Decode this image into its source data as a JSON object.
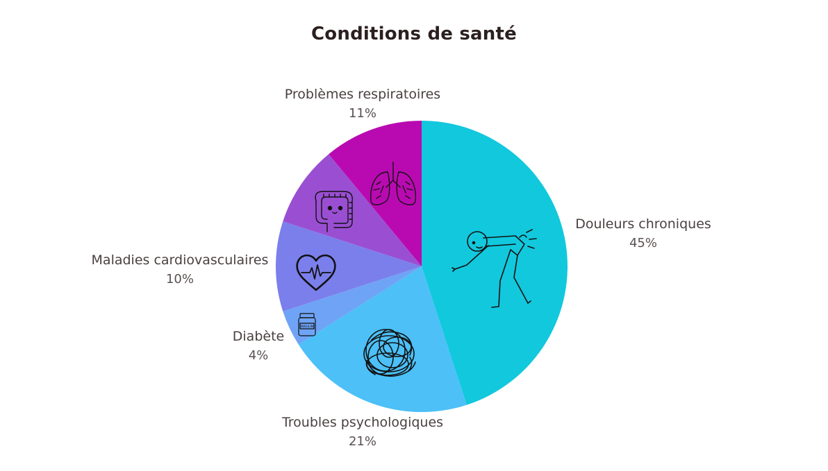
{
  "chart_data": {
    "type": "pie",
    "title": "Conditions de santé",
    "slices": [
      {
        "label": "Douleurs chroniques",
        "value": 45,
        "value_label": "45%",
        "color": "#12c8dd",
        "icon": "person-back-pain-icon"
      },
      {
        "label": "Troubles psychologiques",
        "value": 21,
        "value_label": "21%",
        "color": "#4cc0f7",
        "icon": "tangled-scribble-icon"
      },
      {
        "label": "Diabète",
        "value": 4,
        "value_label": "4%",
        "color": "#6fa3f5",
        "icon": "insulin-bottle-icon"
      },
      {
        "label": "Maladies cardiovasculaires",
        "value": 10,
        "value_label": "10%",
        "color": "#7b7feb",
        "icon": "heart-heartbeat-icon"
      },
      {
        "label": "",
        "value": 9,
        "value_label": "",
        "color": "#9a4fd2",
        "icon": "intestine-icon"
      },
      {
        "label": "Problèmes respiratoires",
        "value": 11,
        "value_label": "11%",
        "color": "#b90ab1",
        "icon": "lungs-icon"
      }
    ],
    "start": "top",
    "direction": "clockwise"
  },
  "icon_texts": {
    "insulin": "INSULIN"
  }
}
